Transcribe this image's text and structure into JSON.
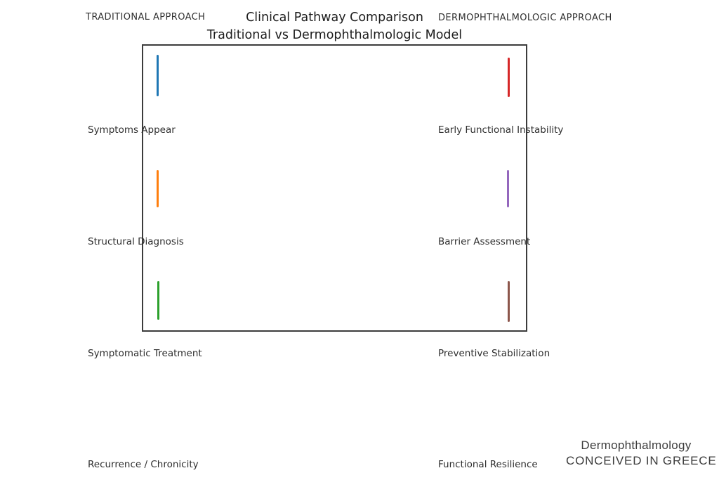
{
  "page": {
    "background_color": "#ffffff",
    "text_color": "#2b2b2b"
  },
  "header": {
    "left_column_label": "TRADITIONAL APPROACH",
    "title": "Clinical Pathway Comparison",
    "subtitle": "Traditional vs Dermophthalmologic Model",
    "right_column_label": "DERMOPHTHALMOLOGIC APPROACH"
  },
  "diagram": {
    "frame_border_color": "#3c3c3c",
    "traditional": {
      "stages": [
        "Symptoms Appear",
        "Structural Diagnosis",
        "Symptomatic Treatment",
        "Recurrence / Chronicity"
      ],
      "arrow_colors": [
        "#1f77b4",
        "#ff7f0e",
        "#2ca02c"
      ]
    },
    "dermophthalmologic": {
      "stages": [
        "Early Functional Instability",
        "Barrier Assessment",
        "Preventive Stabilization",
        "Functional Resilience"
      ],
      "arrow_colors": [
        "#d62728",
        "#9467bd",
        "#8c564b"
      ]
    }
  },
  "logo": {
    "name": "Dermophthalmology",
    "tagline": "CONCEIVED IN GREECE"
  }
}
